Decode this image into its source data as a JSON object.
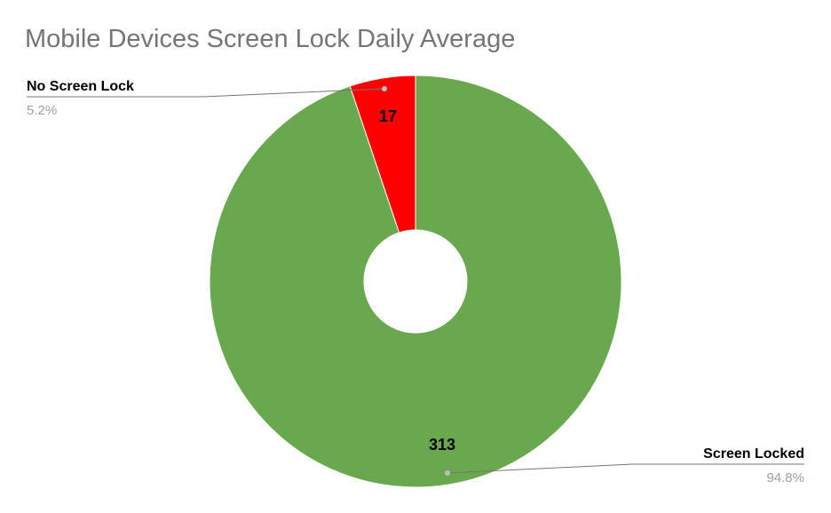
{
  "chart_data": {
    "type": "pie",
    "title": "Mobile Devices Screen Lock Daily Average",
    "donut": true,
    "slices": [
      {
        "label": "Screen Locked",
        "value": 313,
        "percent_label": "94.8%",
        "color": "#6aa84f"
      },
      {
        "label": "No Screen Lock",
        "value": 17,
        "percent_label": "5.2%",
        "color": "#ff0000"
      }
    ],
    "legend": "none",
    "labels": "outside-with-leader-lines"
  }
}
